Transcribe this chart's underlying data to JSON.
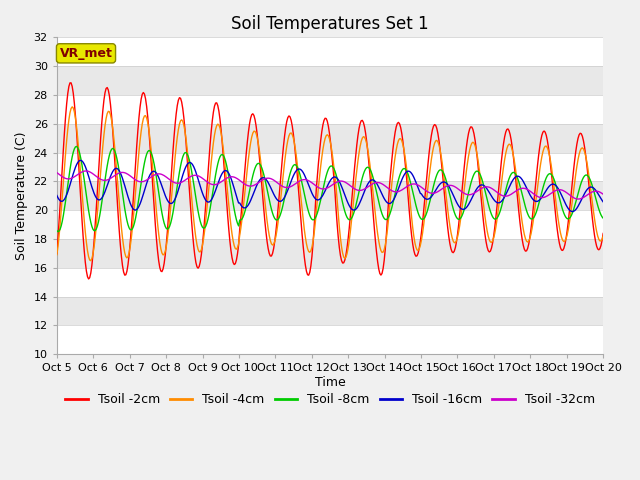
{
  "title": "Soil Temperatures Set 1",
  "xlabel": "Time",
  "ylabel": "Soil Temperature (C)",
  "ylim": [
    10,
    32
  ],
  "xlim": [
    0,
    15
  ],
  "xtick_labels": [
    "Oct 5",
    "Oct 6",
    "Oct 7",
    "Oct 8",
    "Oct 9",
    "Oct 10",
    "Oct 11",
    "Oct 12",
    "Oct 13",
    "Oct 14",
    "Oct 15",
    "Oct 16",
    "Oct 17",
    "Oct 18",
    "Oct 19",
    "Oct 20"
  ],
  "xtick_positions": [
    0,
    1,
    2,
    3,
    4,
    5,
    6,
    7,
    8,
    9,
    10,
    11,
    12,
    13,
    14,
    15
  ],
  "ytick_positions": [
    10,
    12,
    14,
    16,
    18,
    20,
    22,
    24,
    26,
    28,
    30,
    32
  ],
  "legend_entries": [
    "Tsoil -2cm",
    "Tsoil -4cm",
    "Tsoil -8cm",
    "Tsoil -16cm",
    "Tsoil -32cm"
  ],
  "line_colors": [
    "#ff0000",
    "#ff8c00",
    "#00cc00",
    "#0000cc",
    "#cc00cc"
  ],
  "annotation_text": "VR_met",
  "annotation_box_facecolor": "#e8e800",
  "annotation_box_edgecolor": "#888800",
  "annotation_text_color": "#800000",
  "plot_bg_color": "#ffffff",
  "stripe_color": "#e8e8e8",
  "title_fontsize": 12,
  "axis_label_fontsize": 9,
  "tick_fontsize": 8,
  "legend_fontsize": 9,
  "num_points": 500,
  "fig_bg_color": "#f0f0f0"
}
